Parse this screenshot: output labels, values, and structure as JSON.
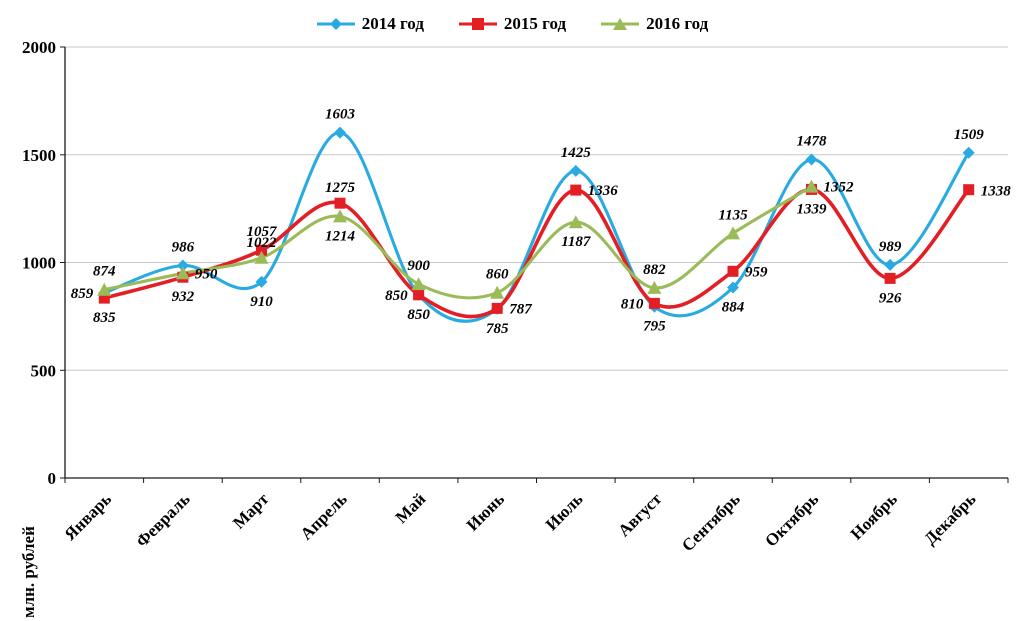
{
  "chart_data": {
    "type": "line",
    "title": "",
    "ylabel": "млн. рублей",
    "ylim": [
      0,
      2000
    ],
    "yticks": [
      0,
      500,
      1000,
      1500,
      2000
    ],
    "grid": true,
    "smooth": true,
    "legend_position": "top",
    "categories": [
      "Январь",
      "Февраль",
      "Март",
      "Апрель",
      "Май",
      "Июнь",
      "Июль",
      "Август",
      "Сентябрь",
      "Октябрь",
      "Ноябрь",
      "Декабрь"
    ],
    "series": [
      {
        "name": "2014 год",
        "marker": "diamond",
        "color": "#29aae1",
        "values": [
          859,
          986,
          910,
          1603,
          850,
          785,
          1425,
          795,
          884,
          1478,
          989,
          1509
        ]
      },
      {
        "name": "2015 год",
        "marker": "square",
        "color": "#e31e24",
        "values": [
          835,
          932,
          1057,
          1275,
          850,
          787,
          1336,
          810,
          959,
          1339,
          926,
          1338
        ]
      },
      {
        "name": "2016 год",
        "marker": "triangle",
        "color": "#9bbb59",
        "values": [
          874,
          950,
          1022,
          1214,
          900,
          860,
          1187,
          882,
          1135,
          1352,
          null,
          null
        ]
      }
    ],
    "colors": {
      "grid": "#c8c8c8",
      "axis": "#1a1a1a",
      "text": "#000000"
    }
  }
}
